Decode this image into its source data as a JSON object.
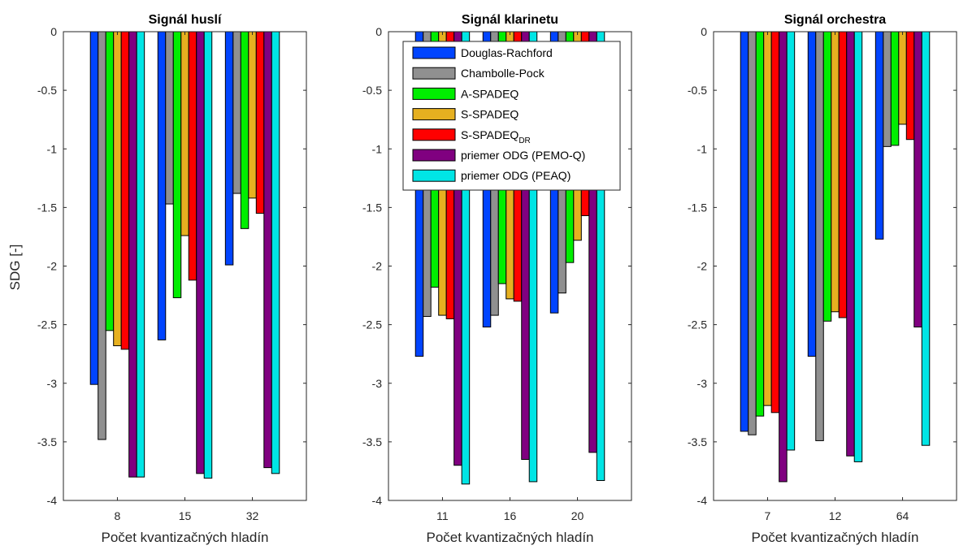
{
  "figure": {
    "ylabel": "SDG [-]"
  },
  "chart_data": [
    {
      "type": "bar",
      "title": "Signál huslí",
      "xlabel": "Počet kvantizačných hladín",
      "ylabel": "SDG [-]",
      "ylim": [
        -4,
        0
      ],
      "yticks": [
        "0",
        "-0.5",
        "-1",
        "-1.5",
        "-2",
        "-2.5",
        "-3",
        "-3.5",
        "-4"
      ],
      "categories": [
        "8",
        "15",
        "32"
      ],
      "grid": false,
      "series": [
        {
          "name": "Douglas-Rachford",
          "values": [
            -3.01,
            -2.63,
            -1.99
          ]
        },
        {
          "name": "Chambolle-Pock",
          "values": [
            -3.48,
            -1.47,
            -1.38
          ]
        },
        {
          "name": "A-SPADEQ",
          "values": [
            -2.55,
            -2.27,
            -1.68
          ]
        },
        {
          "name": "S-SPADEQ",
          "values": [
            -2.68,
            -1.74,
            -1.42
          ]
        },
        {
          "name": "S-SPADEQDR",
          "values": [
            -2.71,
            -2.12,
            -1.55
          ]
        },
        {
          "name": "priemer ODG (PEMO-Q)",
          "values": [
            -3.8,
            -3.77,
            -3.72
          ]
        },
        {
          "name": "priemer ODG (PEAQ)",
          "values": [
            -3.8,
            -3.81,
            -3.77
          ]
        }
      ]
    },
    {
      "type": "bar",
      "title": "Signál klarinetu",
      "xlabel": "Počet kvantizačných hladín",
      "ylim": [
        -4,
        0
      ],
      "yticks": [
        "0",
        "-0.5",
        "-1",
        "-1.5",
        "-2",
        "-2.5",
        "-3",
        "-3.5",
        "-4"
      ],
      "categories": [
        "11",
        "16",
        "20"
      ],
      "grid": false,
      "legend_position": "top",
      "series": [
        {
          "name": "Douglas-Rachford",
          "values": [
            -2.77,
            -2.52,
            -2.4
          ]
        },
        {
          "name": "Chambolle-Pock",
          "values": [
            -2.43,
            -2.42,
            -2.23
          ]
        },
        {
          "name": "A-SPADEQ",
          "values": [
            -2.18,
            -2.15,
            -1.97
          ]
        },
        {
          "name": "S-SPADEQ",
          "values": [
            -2.42,
            -2.28,
            -1.78
          ]
        },
        {
          "name": "S-SPADEQDR",
          "values": [
            -2.45,
            -2.3,
            -1.57
          ]
        },
        {
          "name": "priemer ODG (PEMO-Q)",
          "values": [
            -3.7,
            -3.65,
            -3.59
          ]
        },
        {
          "name": "priemer ODG (PEAQ)",
          "values": [
            -3.86,
            -3.84,
            -3.83
          ]
        }
      ]
    },
    {
      "type": "bar",
      "title": "Signál orchestra",
      "xlabel": "Počet kvantizačných hladín",
      "ylim": [
        -4,
        0
      ],
      "yticks": [
        "0",
        "-0.5",
        "-1",
        "-1.5",
        "-2",
        "-2.5",
        "-3",
        "-3.5",
        "-4"
      ],
      "categories": [
        "7",
        "12",
        "64"
      ],
      "grid": false,
      "series": [
        {
          "name": "Douglas-Rachford",
          "values": [
            -3.41,
            -2.77,
            -1.77
          ]
        },
        {
          "name": "Chambolle-Pock",
          "values": [
            -3.44,
            -3.49,
            -0.98
          ]
        },
        {
          "name": "A-SPADEQ",
          "values": [
            -3.28,
            -2.47,
            -0.97
          ]
        },
        {
          "name": "S-SPADEQ",
          "values": [
            -3.19,
            -2.39,
            -0.79
          ]
        },
        {
          "name": "S-SPADEQDR",
          "values": [
            -3.25,
            -2.44,
            -0.92
          ]
        },
        {
          "name": "priemer ODG (PEMO-Q)",
          "values": [
            -3.84,
            -3.62,
            -2.52
          ]
        },
        {
          "name": "priemer ODG (PEAQ)",
          "values": [
            -3.57,
            -3.67,
            -3.53
          ]
        }
      ]
    }
  ],
  "legend": {
    "items": [
      {
        "label": "Douglas-Rachford",
        "color": "#0044ff"
      },
      {
        "label": "Chambolle-Pock",
        "color": "#909090"
      },
      {
        "label": "A-SPADEQ",
        "color": "#00ee00"
      },
      {
        "label": "S-SPADEQ",
        "color": "#e6b020"
      },
      {
        "label": "S-SPADEQ",
        "subscript": "DR",
        "color": "#ff0000"
      },
      {
        "label": "priemer ODG (PEMO-Q)",
        "color": "#800080"
      },
      {
        "label": "priemer ODG (PEAQ)",
        "color": "#00e5e5"
      }
    ]
  }
}
